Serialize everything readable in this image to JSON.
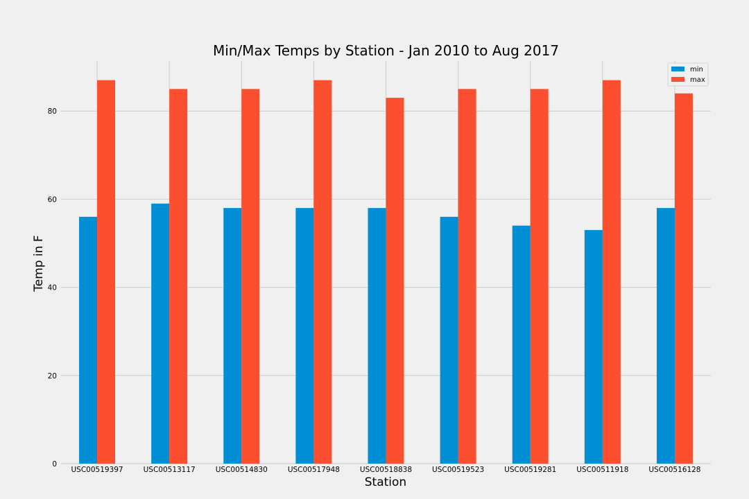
{
  "colors": {
    "background": "#f0f0f0",
    "grid": "#cbcbcb",
    "min": "#008fd5",
    "max": "#fc4f30"
  },
  "chart_data": {
    "type": "bar",
    "title": "Min/Max Temps by Station - Jan 2010 to Aug 2017",
    "xlabel": "Station",
    "ylabel": "Temp in F",
    "categories": [
      "USC00519397",
      "USC00513117",
      "USC00514830",
      "USC00517948",
      "USC00518838",
      "USC00519523",
      "USC00519281",
      "USC00511918",
      "USC00516128"
    ],
    "series": [
      {
        "name": "min",
        "values": [
          56,
          59,
          58,
          58,
          58,
          56,
          54,
          53,
          58
        ]
      },
      {
        "name": "max",
        "values": [
          87,
          85,
          85,
          87,
          83,
          85,
          85,
          87,
          84
        ]
      }
    ],
    "ylim": [
      0,
      91.35
    ],
    "yticks": [
      "0",
      "20",
      "40",
      "60",
      "80"
    ],
    "grid": true,
    "legend_position": "top-right"
  }
}
